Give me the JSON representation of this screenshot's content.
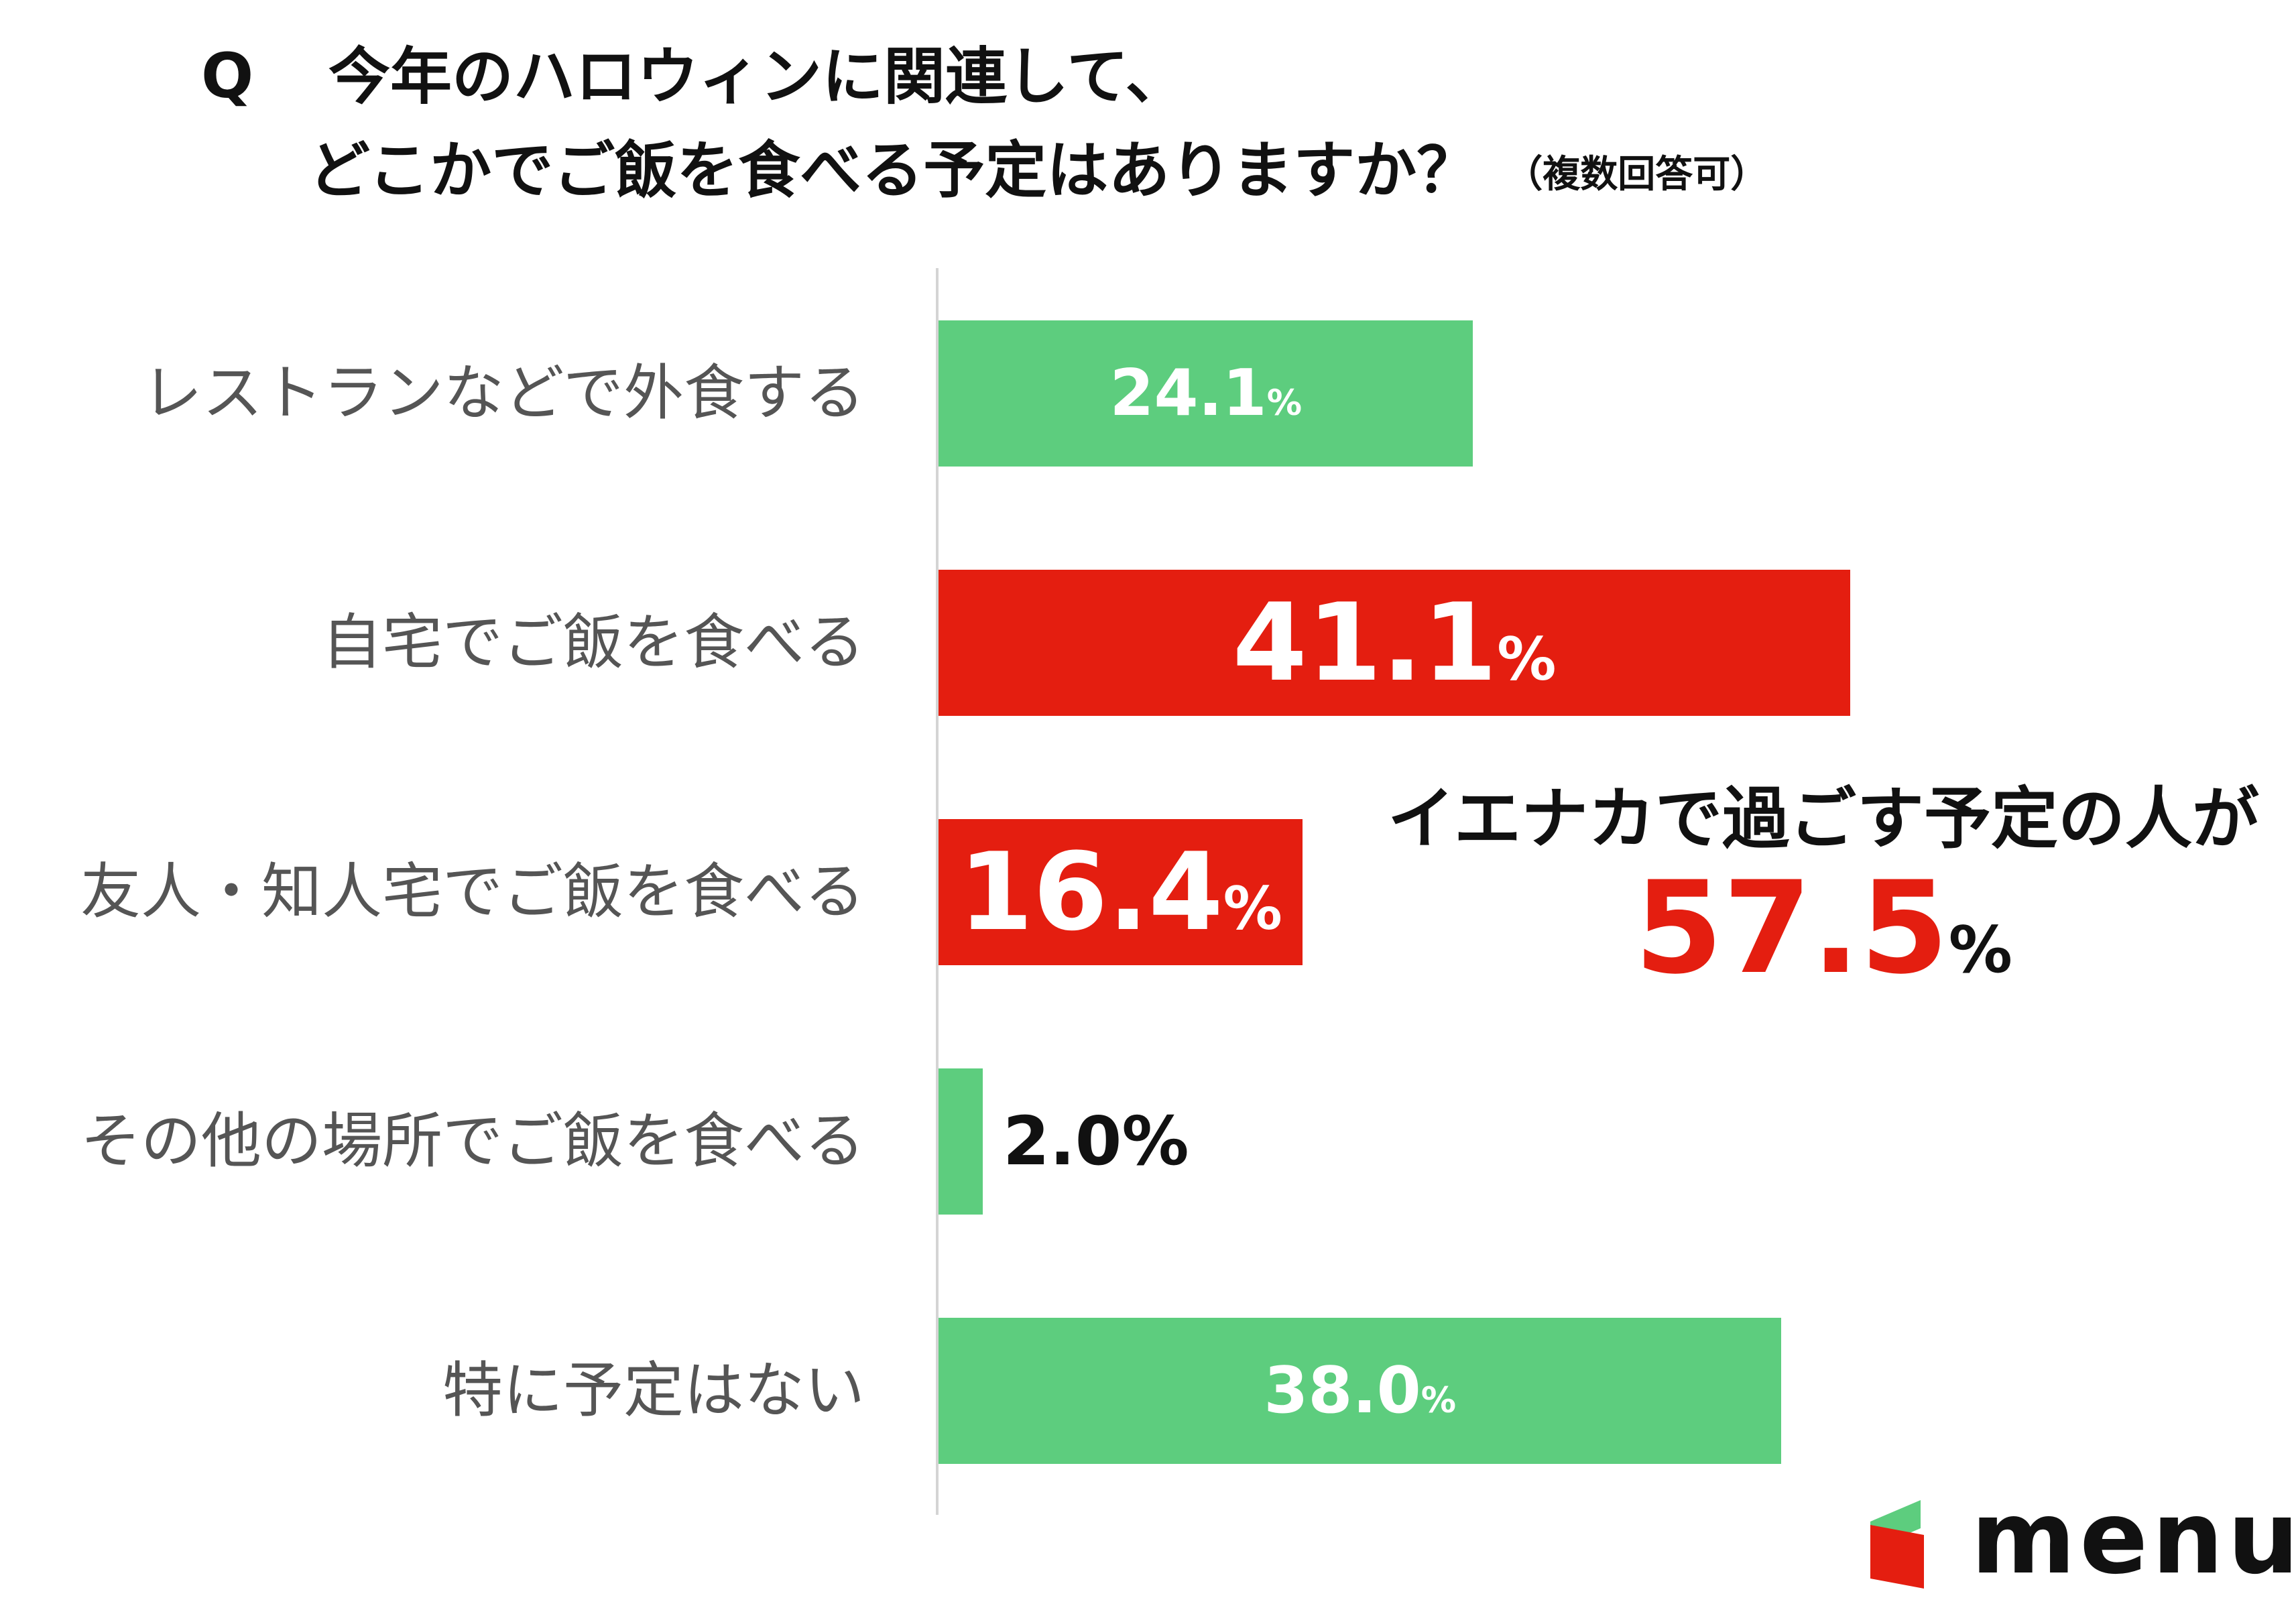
{
  "title": {
    "q_mark": "Q",
    "line1": "今年のハロウィンに関連して、",
    "line2": "どこかでご飯を食べる予定はありますか？",
    "note": "（複数回答可）"
  },
  "chart_data": {
    "type": "bar",
    "orientation": "horizontal",
    "unit": "%",
    "categories": [
      "レストランなどで外食する",
      "自宅でご飯を食べる",
      "友人・知人宅でご飯を食べる",
      "その他の場所でご飯を食べる",
      "特に予定はない"
    ],
    "values": [
      24.1,
      41.1,
      16.4,
      2.0,
      38.0
    ],
    "value_labels": [
      "24.1",
      "41.1",
      "16.4",
      "2.0%",
      "38.0"
    ],
    "label_suffix": "%",
    "bar_colors": [
      "#5dcd7e",
      "#e41e10",
      "#e41e10",
      "#5dcd7e",
      "#5dcd7e"
    ],
    "xlim": [
      0,
      41.1
    ],
    "grid": false,
    "legend": "none"
  },
  "callout": {
    "text": "イエナカで過ごす予定の人が",
    "value": "57.5",
    "suffix": "%",
    "value_color": "#e41e10"
  },
  "logo": {
    "text": "menu",
    "icon": "menu-logo-icon",
    "colors": [
      "#e41e10",
      "#5dcd7e"
    ]
  }
}
